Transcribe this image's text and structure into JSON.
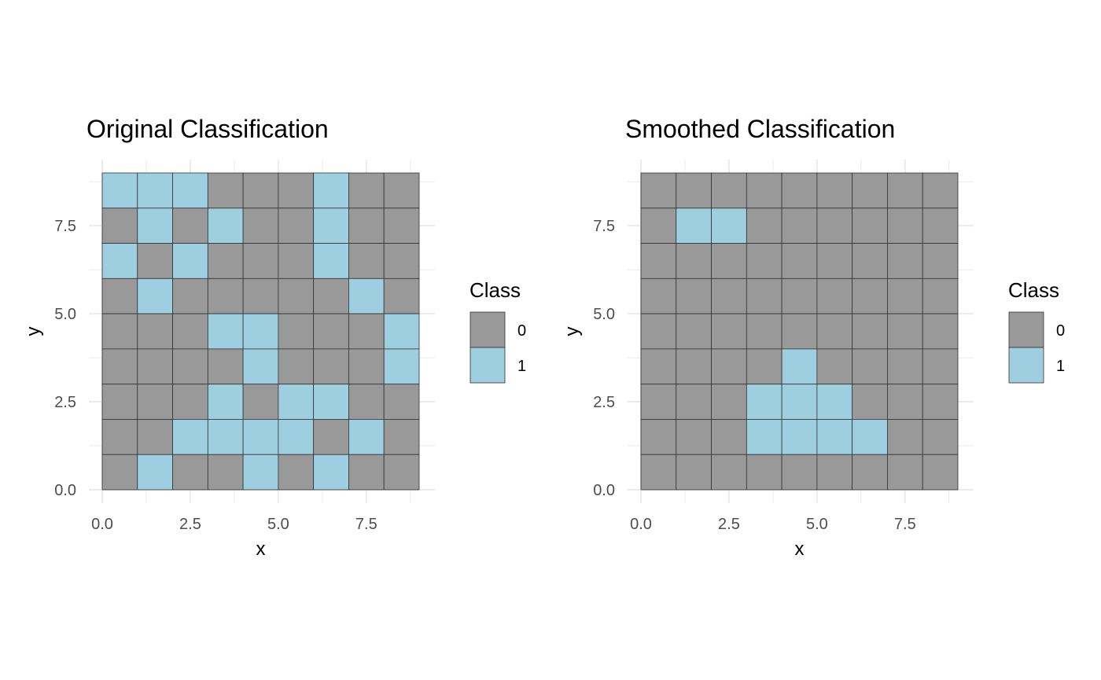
{
  "colors": {
    "class0": "#999999",
    "class1": "#9ecfe0",
    "cell_border": "#333333",
    "grid": "#ebebeb"
  },
  "chart_data": [
    {
      "type": "heatmap",
      "title": "Original Classification",
      "xlabel": "x",
      "ylabel": "y",
      "x_ticks": [
        "0.0",
        "2.5",
        "5.0",
        "7.5"
      ],
      "y_ticks": [
        "0.0",
        "2.5",
        "5.0",
        "7.5"
      ],
      "xlim": [
        0,
        9
      ],
      "ylim": [
        0,
        9
      ],
      "legend": {
        "title": "Class",
        "entries": [
          "0",
          "1"
        ],
        "position": "right"
      },
      "rows_top_to_bottom": [
        [
          1,
          1,
          1,
          0,
          0,
          0,
          1,
          0,
          0
        ],
        [
          0,
          1,
          0,
          1,
          0,
          0,
          1,
          0,
          0
        ],
        [
          1,
          0,
          1,
          0,
          0,
          0,
          1,
          0,
          0
        ],
        [
          0,
          1,
          0,
          0,
          0,
          0,
          0,
          1,
          0
        ],
        [
          0,
          0,
          0,
          1,
          1,
          0,
          0,
          0,
          1
        ],
        [
          0,
          0,
          0,
          0,
          1,
          0,
          0,
          0,
          1
        ],
        [
          0,
          0,
          0,
          1,
          0,
          1,
          1,
          0,
          0
        ],
        [
          0,
          0,
          1,
          1,
          1,
          1,
          0,
          1,
          0
        ],
        [
          0,
          1,
          0,
          0,
          1,
          0,
          1,
          0,
          0
        ]
      ]
    },
    {
      "type": "heatmap",
      "title": "Smoothed Classification",
      "xlabel": "x",
      "ylabel": "y",
      "x_ticks": [
        "0.0",
        "2.5",
        "5.0",
        "7.5"
      ],
      "y_ticks": [
        "0.0",
        "2.5",
        "5.0",
        "7.5"
      ],
      "xlim": [
        0,
        9
      ],
      "ylim": [
        0,
        9
      ],
      "legend": {
        "title": "Class",
        "entries": [
          "0",
          "1"
        ],
        "position": "right"
      },
      "rows_top_to_bottom": [
        [
          0,
          0,
          0,
          0,
          0,
          0,
          0,
          0,
          0
        ],
        [
          0,
          1,
          1,
          0,
          0,
          0,
          0,
          0,
          0
        ],
        [
          0,
          0,
          0,
          0,
          0,
          0,
          0,
          0,
          0
        ],
        [
          0,
          0,
          0,
          0,
          0,
          0,
          0,
          0,
          0
        ],
        [
          0,
          0,
          0,
          0,
          0,
          0,
          0,
          0,
          0
        ],
        [
          0,
          0,
          0,
          0,
          1,
          0,
          0,
          0,
          0
        ],
        [
          0,
          0,
          0,
          1,
          1,
          1,
          0,
          0,
          0
        ],
        [
          0,
          0,
          0,
          1,
          1,
          1,
          1,
          0,
          0
        ],
        [
          0,
          0,
          0,
          0,
          0,
          0,
          0,
          0,
          0
        ]
      ]
    }
  ]
}
